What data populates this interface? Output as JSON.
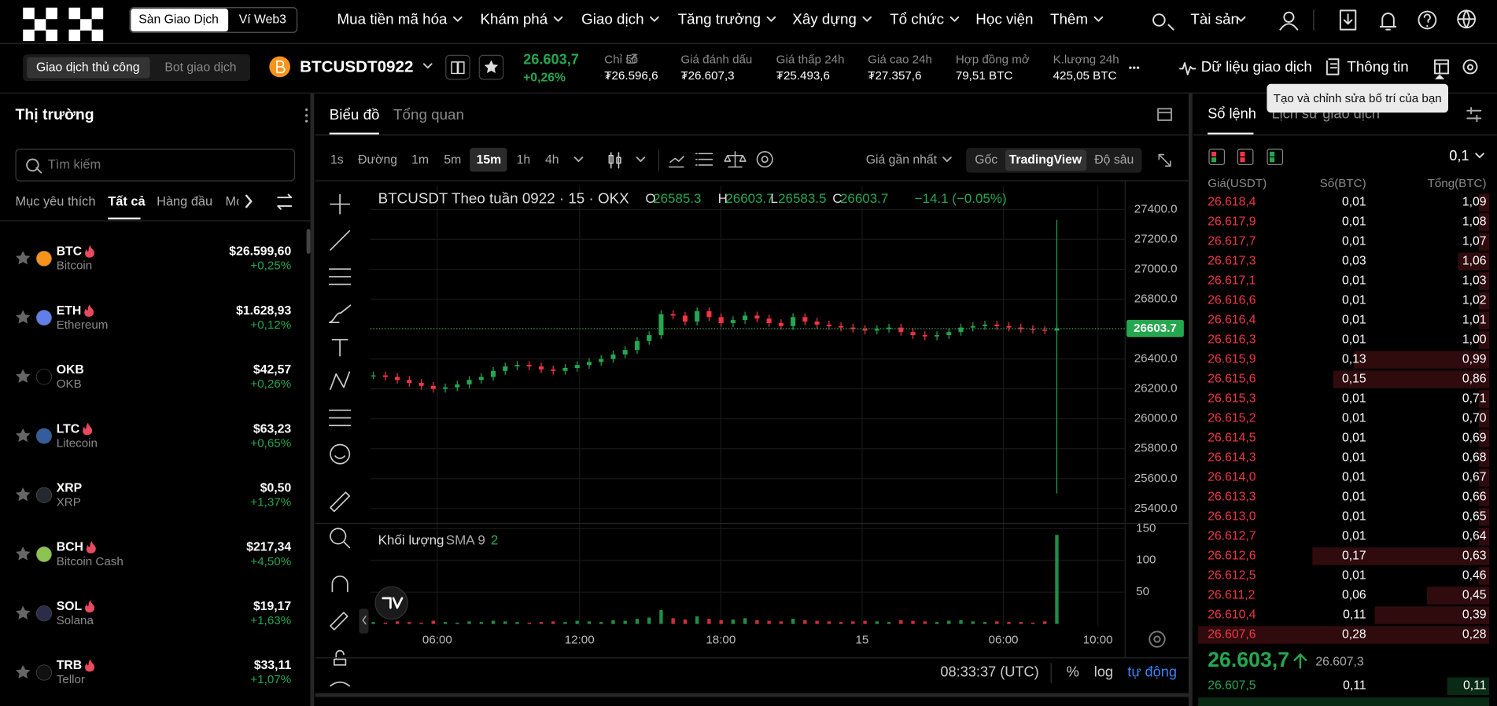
{
  "header": {
    "tabs": [
      "Sàn Giao Dịch",
      "Ví Web3"
    ],
    "nav": [
      "Mua tiền mã hóa",
      "Khám phá",
      "Giao dịch",
      "Tăng trưởng",
      "Xây dựng",
      "Tổ chức",
      "Học viện",
      "Thêm"
    ],
    "assets": "Tài sản"
  },
  "subheader": {
    "modes": [
      "Giao dịch thủ công",
      "Bot giao dịch"
    ],
    "symbol": "BTCUSDT0922",
    "price": "26.603,7",
    "change": "+0,26%",
    "stats": [
      {
        "label": "Chỉ số",
        "value": "₮26.596,6"
      },
      {
        "label": "Giá đánh dấu",
        "value": "₮26.607,3"
      },
      {
        "label": "Giá thấp 24h",
        "value": "₮25.493,6"
      },
      {
        "label": "Giá cao 24h",
        "value": "₮27.357,6"
      },
      {
        "label": "Hợp đồng mở",
        "value": "79,51 BTC"
      },
      {
        "label": "K.lượng 24h",
        "value": "425,05 BTC"
      }
    ],
    "trade_data": "Dữ liệu giao dịch",
    "info": "Thông tin",
    "tooltip": "Tạo và chỉnh sửa bố trí của bạn"
  },
  "market": {
    "title": "Thị trường",
    "search": "Tìm kiếm",
    "tabs": [
      "Mục yêu thích",
      "Tất cả",
      "Hàng đầu",
      "Mới"
    ],
    "coins": [
      {
        "symbol": "BTC",
        "name": "Bitcoin",
        "price": "$26.599,60",
        "change": "+0,25%",
        "color": "#f7931a",
        "hot": true
      },
      {
        "symbol": "ETH",
        "name": "Ethereum",
        "price": "$1.628,93",
        "change": "+0,12%",
        "color": "#627eea",
        "hot": true
      },
      {
        "symbol": "OKB",
        "name": "OKB",
        "price": "$42,57",
        "change": "+0,26%",
        "color": "#000000",
        "hot": false
      },
      {
        "symbol": "LTC",
        "name": "Litecoin",
        "price": "$63,23",
        "change": "+0,65%",
        "color": "#345d9d",
        "hot": true
      },
      {
        "symbol": "XRP",
        "name": "XRP",
        "price": "$0,50",
        "change": "+1,37%",
        "color": "#23292f",
        "hot": false
      },
      {
        "symbol": "BCH",
        "name": "Bitcoin Cash",
        "price": "$217,34",
        "change": "+4,50%",
        "color": "#8dc351",
        "hot": true
      },
      {
        "symbol": "SOL",
        "name": "Solana",
        "price": "$19,17",
        "change": "+1,63%",
        "color": "#2b2b4a",
        "hot": true
      },
      {
        "symbol": "TRB",
        "name": "Tellor",
        "price": "$33,11",
        "change": "+1,07%",
        "color": "#111111",
        "hot": true
      }
    ]
  },
  "chart": {
    "tabs": [
      "Biểu đồ",
      "Tổng quan"
    ],
    "intervals": [
      "1s",
      "Đường",
      "1m",
      "5m",
      "15m",
      "1h",
      "4h"
    ],
    "price_source": "Giá gần nhất",
    "views": [
      "Gốc",
      "TradingView",
      "Độ sâu"
    ],
    "legend": {
      "title": "BTCUSDT Theo tuần 0922 · 15 · OKX",
      "o": "O",
      "open": "26585.3",
      "h": "H",
      "high": "26603.7",
      "l": "L",
      "low": "26583.5",
      "c": "C",
      "close": "26603.7",
      "change": "−14.1 (−0.05%)"
    },
    "ylim": [
      25400,
      27400
    ],
    "yticks": [
      {
        "value": 27400,
        "label": "27400.0"
      },
      {
        "value": 27200,
        "label": "27200.0"
      },
      {
        "value": 27000,
        "label": "27000.0"
      },
      {
        "value": 26800,
        "label": "26800.0"
      },
      {
        "value": 26600,
        "label": "26600.0"
      },
      {
        "value": 26400,
        "label": "26400.0"
      },
      {
        "value": 26200,
        "label": "26200.0"
      },
      {
        "value": 26000,
        "label": "26000.0"
      },
      {
        "value": 25800,
        "label": "25800.0"
      },
      {
        "value": 25600,
        "label": "25600.0"
      },
      {
        "value": 25400,
        "label": "25400.0"
      }
    ],
    "last": {
      "value": 26603.7,
      "label": "26603.7"
    },
    "closes": [
      26290,
      26280,
      26260,
      26240,
      26220,
      26200,
      26210,
      26230,
      26260,
      26280,
      26320,
      26350,
      26360,
      26350,
      26330,
      26320,
      26340,
      26360,
      26380,
      26400,
      26430,
      26460,
      26520,
      26560,
      26700,
      26690,
      26650,
      26720,
      26680,
      26640,
      26660,
      26690,
      26670,
      26640,
      26620,
      26680,
      26650,
      26630,
      26620,
      26610,
      26600,
      26590,
      26600,
      26610,
      26580,
      26560,
      26550,
      26560,
      26580,
      26610,
      26620,
      26630,
      26620,
      26610,
      26600,
      26595,
      26590,
      26603.7
    ],
    "spike": {
      "high": 27330,
      "low": 25500
    },
    "volume_label": "Khối lượng",
    "sma_label": "SMA 9",
    "sma_value": "2",
    "vlim": [
      0,
      150
    ],
    "vticks": [
      150,
      100,
      50
    ],
    "volumes": [
      3,
      2,
      4,
      3,
      2,
      5,
      3,
      2,
      4,
      3,
      5,
      4,
      3,
      2,
      3,
      4,
      3,
      5,
      4,
      3,
      6,
      5,
      8,
      10,
      22,
      9,
      7,
      12,
      8,
      6,
      7,
      9,
      6,
      5,
      4,
      8,
      6,
      5,
      4,
      3,
      4,
      5,
      4,
      3,
      6,
      5,
      4,
      3,
      5,
      6,
      4,
      3,
      4,
      3,
      3,
      2,
      4,
      140
    ],
    "xlabels": [
      "06:00",
      "12:00",
      "18:00",
      "15",
      "06:00",
      "10:00"
    ],
    "clock": "08:33:37 (UTC)",
    "percent": "%",
    "log": "log",
    "auto": "tự động"
  },
  "book": {
    "tabs": [
      "Sổ lệnh",
      "Lịch sử giao dịch"
    ],
    "step": "0,1",
    "columns": [
      "Giá(USDT)",
      "Số(BTC)",
      "Tổng(BTC)"
    ],
    "asks": [
      [
        "26.618,4",
        "0,01",
        "1,09"
      ],
      [
        "26.617,9",
        "0,01",
        "1,08"
      ],
      [
        "26.617,7",
        "0,01",
        "1,07"
      ],
      [
        "26.617,3",
        "0,03",
        "1,06"
      ],
      [
        "26.617,1",
        "0,01",
        "1,03"
      ],
      [
        "26.616,6",
        "0,01",
        "1,02"
      ],
      [
        "26.616,4",
        "0,01",
        "1,01"
      ],
      [
        "26.616,3",
        "0,01",
        "1,00"
      ],
      [
        "26.615,9",
        "0,13",
        "0,99"
      ],
      [
        "26.615,6",
        "0,15",
        "0,86"
      ],
      [
        "26.615,3",
        "0,01",
        "0,71"
      ],
      [
        "26.615,2",
        "0,01",
        "0,70"
      ],
      [
        "26.614,5",
        "0,01",
        "0,69"
      ],
      [
        "26.614,3",
        "0,01",
        "0,68"
      ],
      [
        "26.614,0",
        "0,01",
        "0,67"
      ],
      [
        "26.613,3",
        "0,01",
        "0,66"
      ],
      [
        "26.613,0",
        "0,01",
        "0,65"
      ],
      [
        "26.612,7",
        "0,01",
        "0,64"
      ],
      [
        "26.612,6",
        "0,17",
        "0,63"
      ],
      [
        "26.612,5",
        "0,01",
        "0,46"
      ],
      [
        "26.611,2",
        "0,06",
        "0,45"
      ],
      [
        "26.610,4",
        "0,11",
        "0,39"
      ],
      [
        "26.607,6",
        "0,28",
        "0,28"
      ]
    ],
    "last_price": "26.603,7",
    "mark_price": "26.607,3",
    "bids": [
      [
        "26.607,5",
        "0,11",
        "0,11"
      ]
    ]
  }
}
